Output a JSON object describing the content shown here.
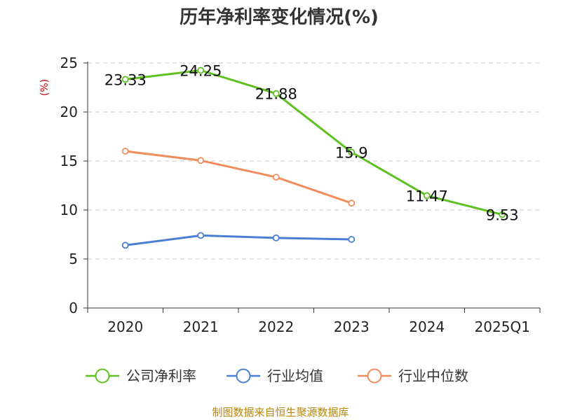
{
  "chart_data": {
    "type": "line",
    "title": "历年净利率变化情况(%)",
    "ylabel": "(%)",
    "xlabel": "",
    "categories": [
      "2020",
      "2021",
      "2022",
      "2023",
      "2024",
      "2025Q1"
    ],
    "ylim": [
      0,
      25
    ],
    "yticks": [
      0,
      5,
      10,
      15,
      20,
      25
    ],
    "grid": true,
    "legend_position": "bottom",
    "series": [
      {
        "name": "公司净利率",
        "color": "#5ec11f",
        "values": [
          23.33,
          24.25,
          21.88,
          15.9,
          11.47,
          9.53
        ],
        "labels": [
          "23.33",
          "24.25",
          "21.88",
          "15.9",
          "11.47",
          "9.53"
        ]
      },
      {
        "name": "行业均值",
        "color": "#4a7fd6",
        "values": [
          6.4,
          7.4,
          7.15,
          7.0,
          null,
          null
        ]
      },
      {
        "name": "行业中位数",
        "color": "#f28c5c",
        "values": [
          16.0,
          15.05,
          13.35,
          10.7,
          null,
          null
        ]
      }
    ],
    "source": "制图数据来自恒生聚源数据库"
  }
}
